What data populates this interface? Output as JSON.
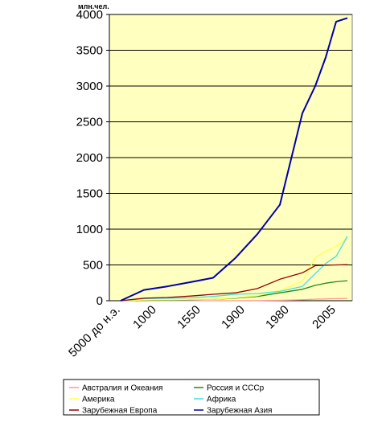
{
  "chart_data": {
    "type": "line",
    "unit_label": "млн.чел.",
    "x_tick_labels": [
      "5000 до н.э.",
      "1000",
      "1550",
      "1900",
      "1980",
      "2005"
    ],
    "ylim": [
      0,
      4000
    ],
    "y_ticks": [
      0,
      500,
      1000,
      1500,
      2000,
      2500,
      3000,
      3500,
      4000
    ],
    "grid": true,
    "legend_position": "bottom",
    "plot_background": "#FFFFC0",
    "series": [
      {
        "name": "Австралия и Океания",
        "color": "#FF9999",
        "values": [
          0,
          0,
          0,
          0,
          0,
          1,
          2,
          6,
          14,
          21,
          25,
          29,
          31
        ]
      },
      {
        "name": "Россия и СССр",
        "color": "#1E8A1E",
        "values": [
          0,
          5,
          10,
          15,
          20,
          35,
          60,
          110,
          160,
          215,
          245,
          265,
          280
        ]
      },
      {
        "name": "Америка",
        "color": "#FFFF55",
        "values": [
          0,
          10,
          15,
          20,
          20,
          40,
          70,
          140,
          270,
          600,
          690,
          760,
          890
        ]
      },
      {
        "name": "Африка",
        "color": "#40E0E0",
        "values": [
          0,
          30,
          35,
          40,
          60,
          90,
          100,
          130,
          200,
          380,
          520,
          620,
          900
        ]
      },
      {
        "name": "Зарубежная Европа",
        "color": "#990000",
        "values": [
          0,
          35,
          45,
          65,
          90,
          110,
          170,
          300,
          390,
          490,
          495,
          500,
          505
        ]
      },
      {
        "name": "Зарубежная Азия",
        "color": "#0000AA",
        "values": [
          0,
          150,
          200,
          260,
          320,
          600,
          930,
          1340,
          2620,
          3000,
          3400,
          3900,
          3950
        ]
      }
    ]
  }
}
